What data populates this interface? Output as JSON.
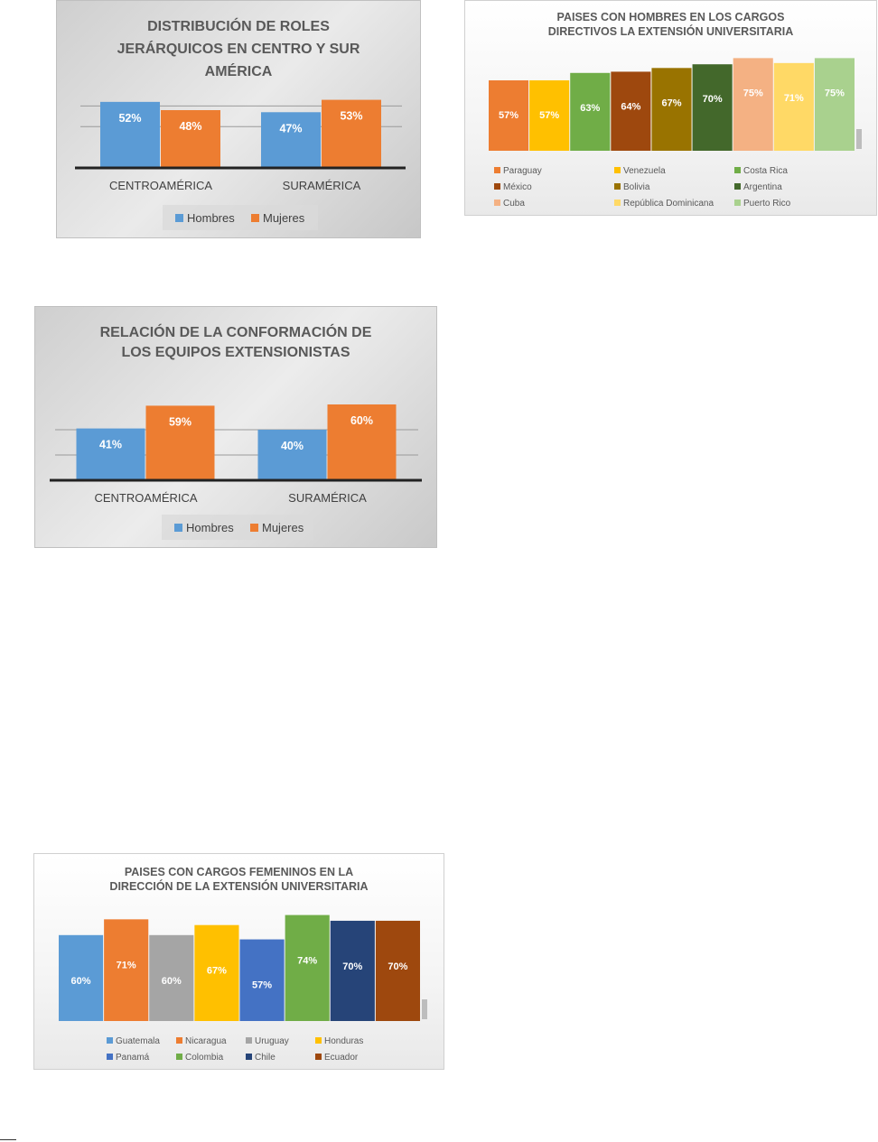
{
  "chart_data": [
    {
      "type": "bar",
      "title": "DISTRIBUCIÓN DE ROLES JERÁRQUICOS EN CENTRO Y SUR AMÉRICA",
      "title_lines": [
        "DISTRIBUCIÓN DE ROLES",
        "JERÁRQUICOS EN CENTRO Y SUR",
        "AMÉRICA"
      ],
      "categories": [
        "CENTROAMÉRICA",
        "SURAMÉRICA"
      ],
      "series": [
        {
          "name": "Hombres",
          "values": [
            52,
            47
          ],
          "labels": [
            "52%",
            "47%"
          ],
          "color": "#5b9bd5"
        },
        {
          "name": "Mujeres",
          "values": [
            48,
            53
          ],
          "labels": [
            "48%",
            "53%"
          ],
          "color": "#ed7d31"
        }
      ],
      "ylim": [
        20,
        55
      ],
      "legend": "bottom",
      "grid": true
    },
    {
      "type": "bar",
      "title": "PAISES CON HOMBRES EN LOS CARGOS DIRECTIVOS LA EXTENSIÓN UNIVERSITARIA",
      "title_lines": [
        "PAISES CON HOMBRES EN LOS CARGOS",
        "DIRECTIVOS LA EXTENSIÓN UNIVERSITARIA"
      ],
      "categories": [
        "Paraguay",
        "Venezuela",
        "Costa Rica",
        "México",
        "Bolivia",
        "Argentina",
        "Cuba",
        "República Dominicana",
        "Puerto Rico"
      ],
      "values": [
        57,
        57,
        63,
        64,
        67,
        70,
        75,
        71,
        75
      ],
      "labels": [
        "57%",
        "57%",
        "63%",
        "64%",
        "67%",
        "70%",
        "75%",
        "71%",
        "75%"
      ],
      "colors": [
        "#ed7d31",
        "#ffc000",
        "#70ad47",
        "#9e480e",
        "#997300",
        "#43682b",
        "#f4b183",
        "#ffd966",
        "#a9d18e"
      ],
      "ylim": [
        0,
        76
      ],
      "legend": "bottom",
      "grid": false
    },
    {
      "type": "bar",
      "title": "RELACIÓN DE LA CONFORMACIÓN DE LOS EQUIPOS EXTENSIONISTAS",
      "title_lines": [
        "RELACIÓN DE LA CONFORMACIÓN DE",
        "LOS EQUIPOS EXTENSIONISTAS"
      ],
      "categories": [
        "CENTROAMÉRICA",
        "SURAMÉRICA"
      ],
      "series": [
        {
          "name": "Hombres",
          "values": [
            41,
            40
          ],
          "labels": [
            "41%",
            "40%"
          ],
          "color": "#5b9bd5"
        },
        {
          "name": "Mujeres",
          "values": [
            59,
            60
          ],
          "labels": [
            "59%",
            "60%"
          ],
          "color": "#ed7d31"
        }
      ],
      "ylim": [
        0,
        60
      ],
      "legend": "bottom",
      "grid": true
    },
    {
      "type": "bar",
      "title": "PAISES CON CARGOS FEMENINOS EN LA DIRECCIÓN DE LA EXTENSIÓN UNIVERSITARIA",
      "title_lines": [
        "PAISES CON CARGOS FEMENINOS EN LA",
        "DIRECCIÓN DE LA EXTENSIÓN UNIVERSITARIA"
      ],
      "categories": [
        "Guatemala",
        "Nicaragua",
        "Uruguay",
        "Honduras",
        "Panamá",
        "Colombia",
        "Chile",
        "Ecuador"
      ],
      "values": [
        60,
        71,
        60,
        67,
        57,
        74,
        70,
        70
      ],
      "labels": [
        "60%",
        "71%",
        "60%",
        "67%",
        "57%",
        "74%",
        "70%",
        "70%"
      ],
      "colors": [
        "#5b9bd5",
        "#ed7d31",
        "#a5a5a5",
        "#ffc000",
        "#4472c4",
        "#70ad47",
        "#264478",
        "#9e480e"
      ],
      "ylim": [
        0,
        75
      ],
      "legend": "bottom",
      "grid": false
    }
  ]
}
